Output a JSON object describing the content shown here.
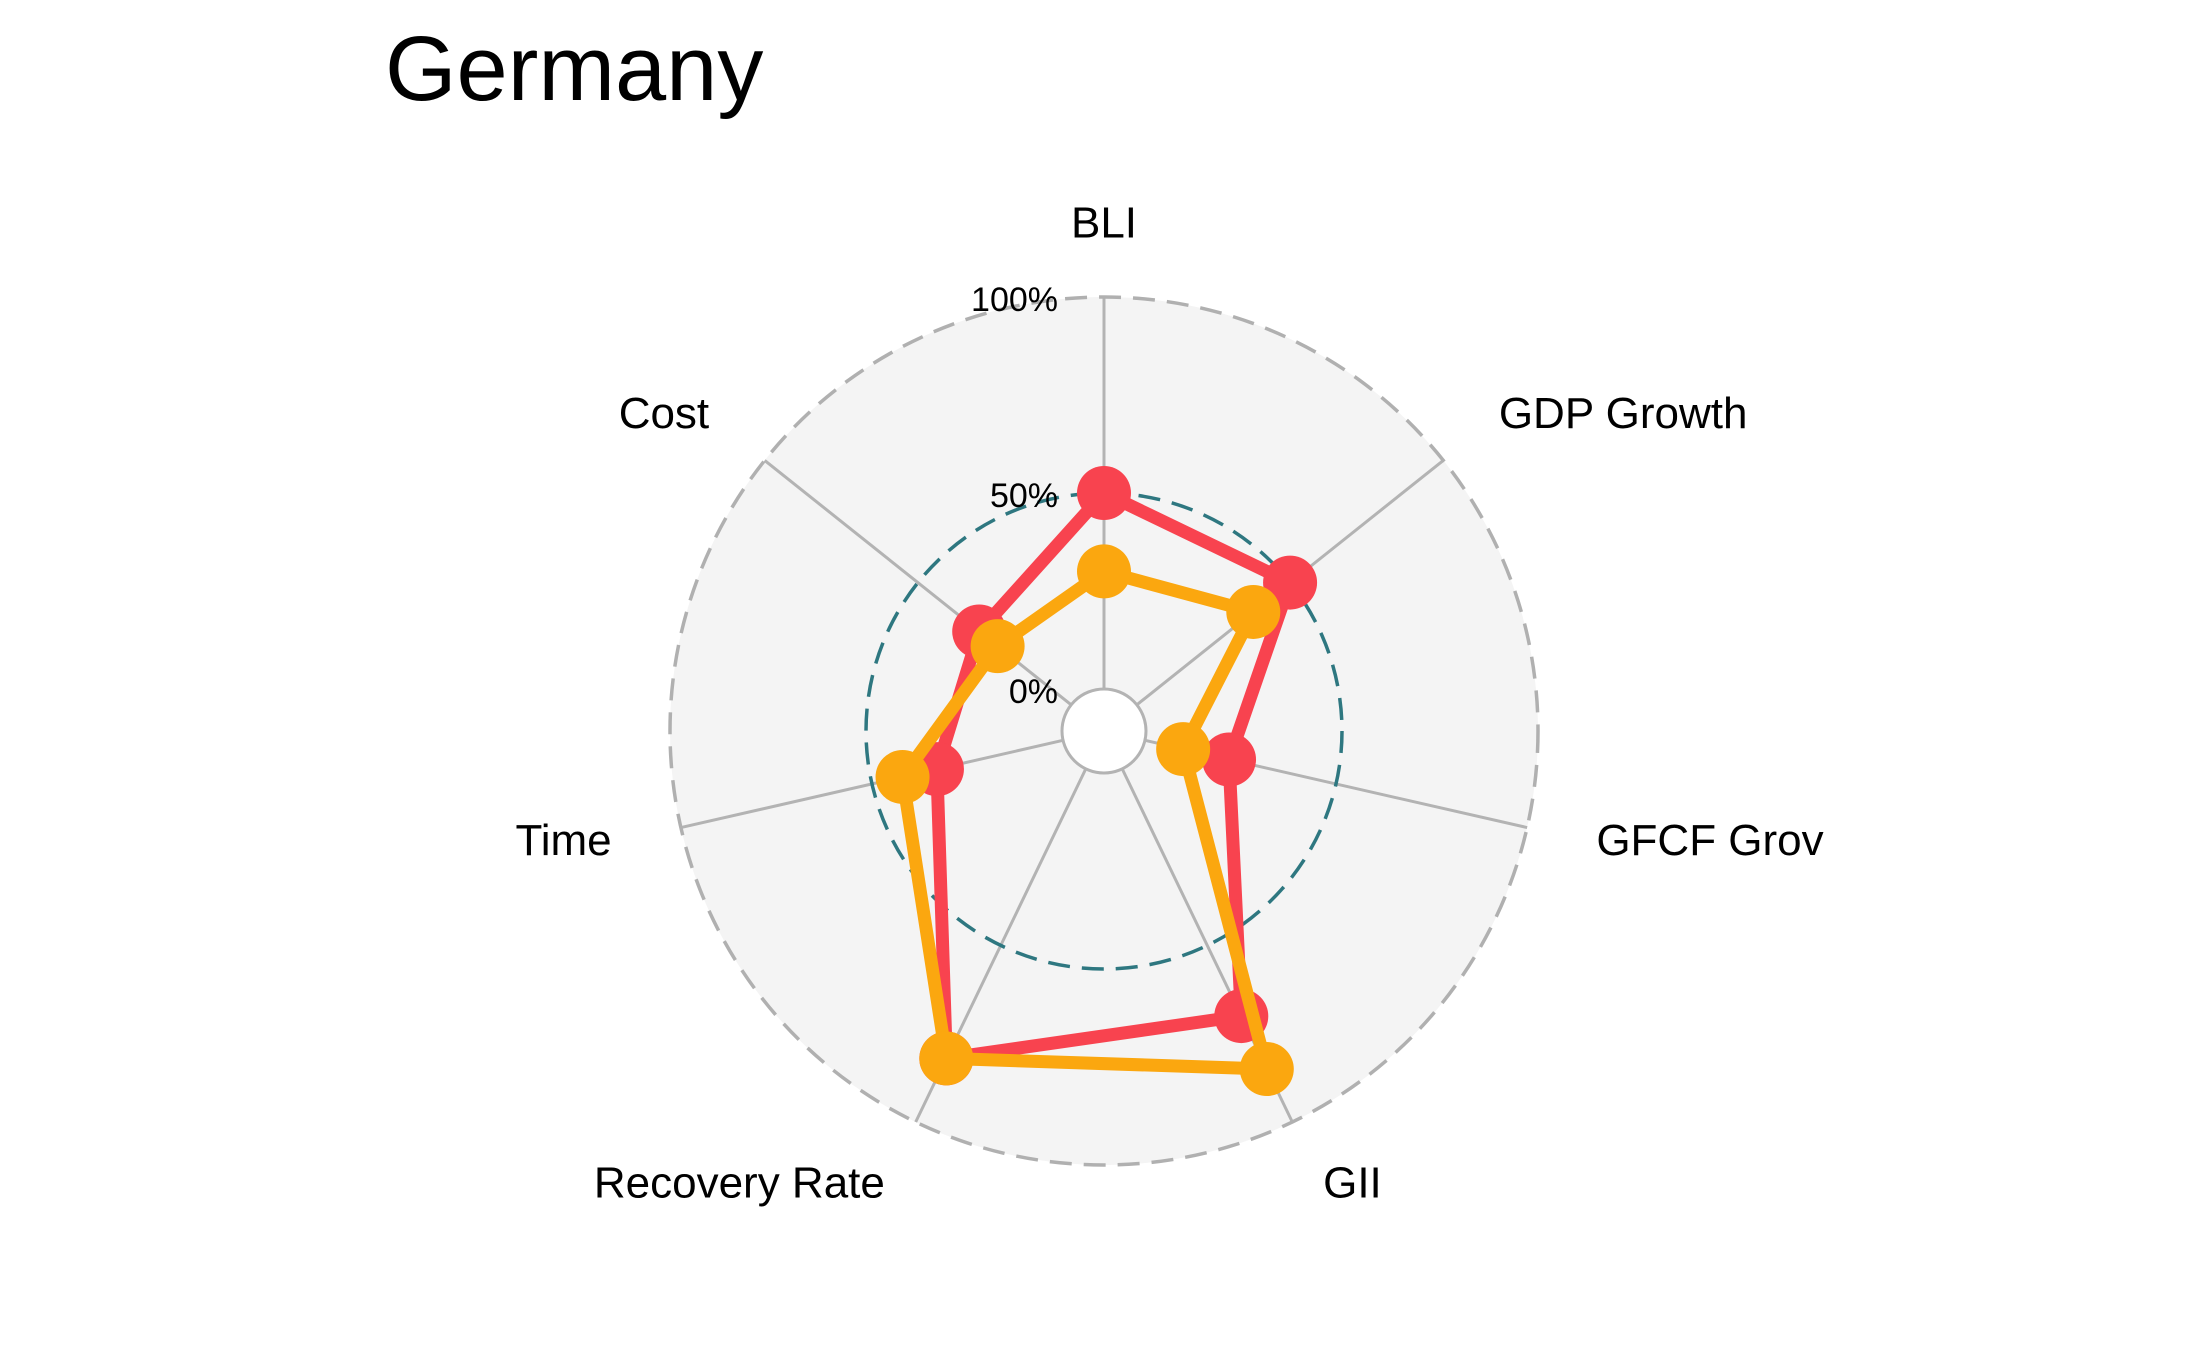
{
  "chart_data": {
    "type": "radar",
    "title": "Germany",
    "axes": [
      "BLI",
      "GDP Growth",
      "GFCF Growth",
      "GII",
      "Recovery Rate",
      "Time",
      "Cost"
    ],
    "axis_label_display": [
      "BLI",
      "GDP Growth",
      "GFCF Grov",
      "GII",
      "Recovery Rate",
      "Time",
      "Cost"
    ],
    "grid_labels": [
      "0%",
      "50%",
      "100%"
    ],
    "grid_values": [
      0,
      50,
      100
    ],
    "range": [
      0,
      100
    ],
    "legend": "none",
    "series": [
      {
        "color": "#f8434f",
        "values": [
          50,
          50,
          22,
          70,
          82,
          33,
          30
        ]
      },
      {
        "color": "#fba70f",
        "values": [
          30,
          38,
          10,
          85,
          82,
          42,
          24
        ]
      }
    ],
    "colors": {
      "background_fill": "#f4f4f4",
      "outer_circle": "#b0b0b0",
      "mid_circle": "#2e7780",
      "spokes": "#b3b3b3"
    }
  }
}
